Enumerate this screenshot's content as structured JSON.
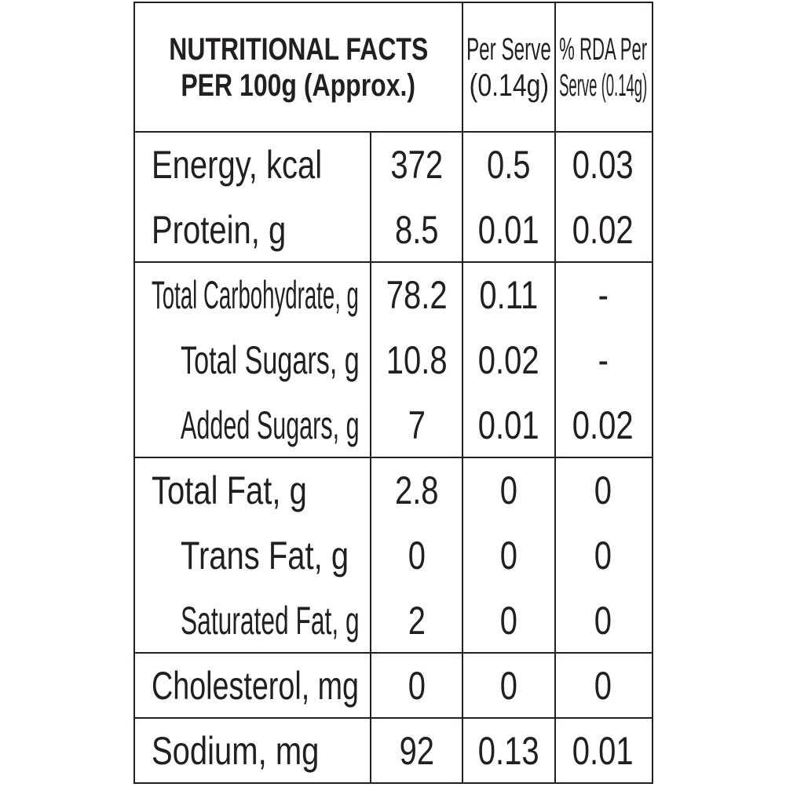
{
  "header": {
    "title_line1": "NUTRITIONAL FACTS",
    "title_line2": "PER 100g (Approx.)",
    "per_serve_line1": "Per Serve",
    "per_serve_line2": "(0.14g)",
    "rda_line1": "% RDA Per",
    "rda_line2": "Serve (0.14g)"
  },
  "rows": [
    {
      "label": "Energy, kcal",
      "per100": "372",
      "serve": "0.5",
      "rda": "0.03",
      "indent": false
    },
    {
      "label": "Protein, g",
      "per100": "8.5",
      "serve": "0.01",
      "rda": "0.02",
      "indent": false
    },
    {
      "label": "Total Carbohydrate, g",
      "per100": "78.2",
      "serve": "0.11",
      "rda": "-",
      "indent": false
    },
    {
      "label": "Total Sugars, g",
      "per100": "10.8",
      "serve": "0.02",
      "rda": "-",
      "indent": true
    },
    {
      "label": "Added Sugars, g",
      "per100": "7",
      "serve": "0.01",
      "rda": "0.02",
      "indent": true
    },
    {
      "label": "Total Fat, g",
      "per100": "2.8",
      "serve": "0",
      "rda": "0",
      "indent": false
    },
    {
      "label": "Trans Fat, g",
      "per100": "0",
      "serve": "0",
      "rda": "0",
      "indent": true
    },
    {
      "label": "Saturated Fat, g",
      "per100": "2",
      "serve": "0",
      "rda": "0",
      "indent": true
    },
    {
      "label": "Cholesterol, mg",
      "per100": "0",
      "serve": "0",
      "rda": "0",
      "indent": false
    },
    {
      "label": "Sodium, mg",
      "per100": "92",
      "serve": "0.13",
      "rda": "0.01",
      "indent": false
    }
  ]
}
